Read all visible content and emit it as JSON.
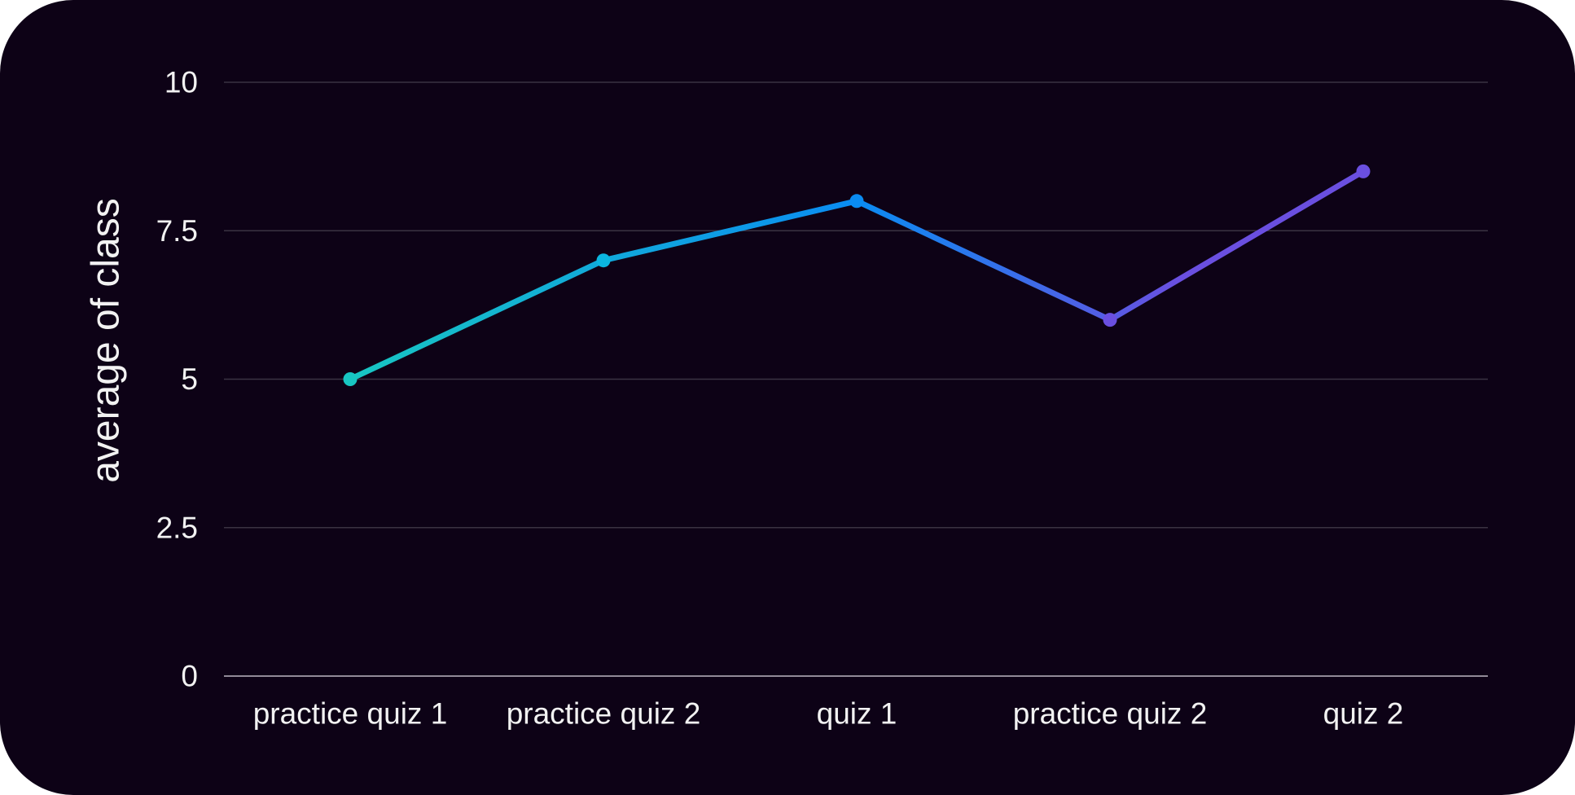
{
  "chart_data": {
    "type": "line",
    "categories": [
      "practice quiz 1",
      "practice quiz 2",
      "quiz 1",
      "practice quiz 2",
      "quiz 2"
    ],
    "values": [
      5,
      7,
      8,
      6,
      8.5
    ],
    "y_ticks": [
      "0",
      "2.5",
      "5",
      "7.5",
      "10"
    ],
    "y_tick_values": [
      0,
      2.5,
      5,
      7.5,
      10
    ],
    "ylabel": "average of class",
    "xlabel": "",
    "ylim": [
      0,
      10
    ],
    "grid": true,
    "legend": "none",
    "colors": {
      "background": "#0d0216",
      "grid": "#3a3342",
      "axis": "#bdb8c4",
      "text": "#f2f2f2",
      "line_gradient": [
        "#18c6c2",
        "#0a8cf2",
        "#6a4fe0"
      ],
      "point_colors": [
        "#18c6c2",
        "#0bb6e0",
        "#0a8cf2",
        "#6a4fe0",
        "#6a4fe0"
      ]
    }
  }
}
